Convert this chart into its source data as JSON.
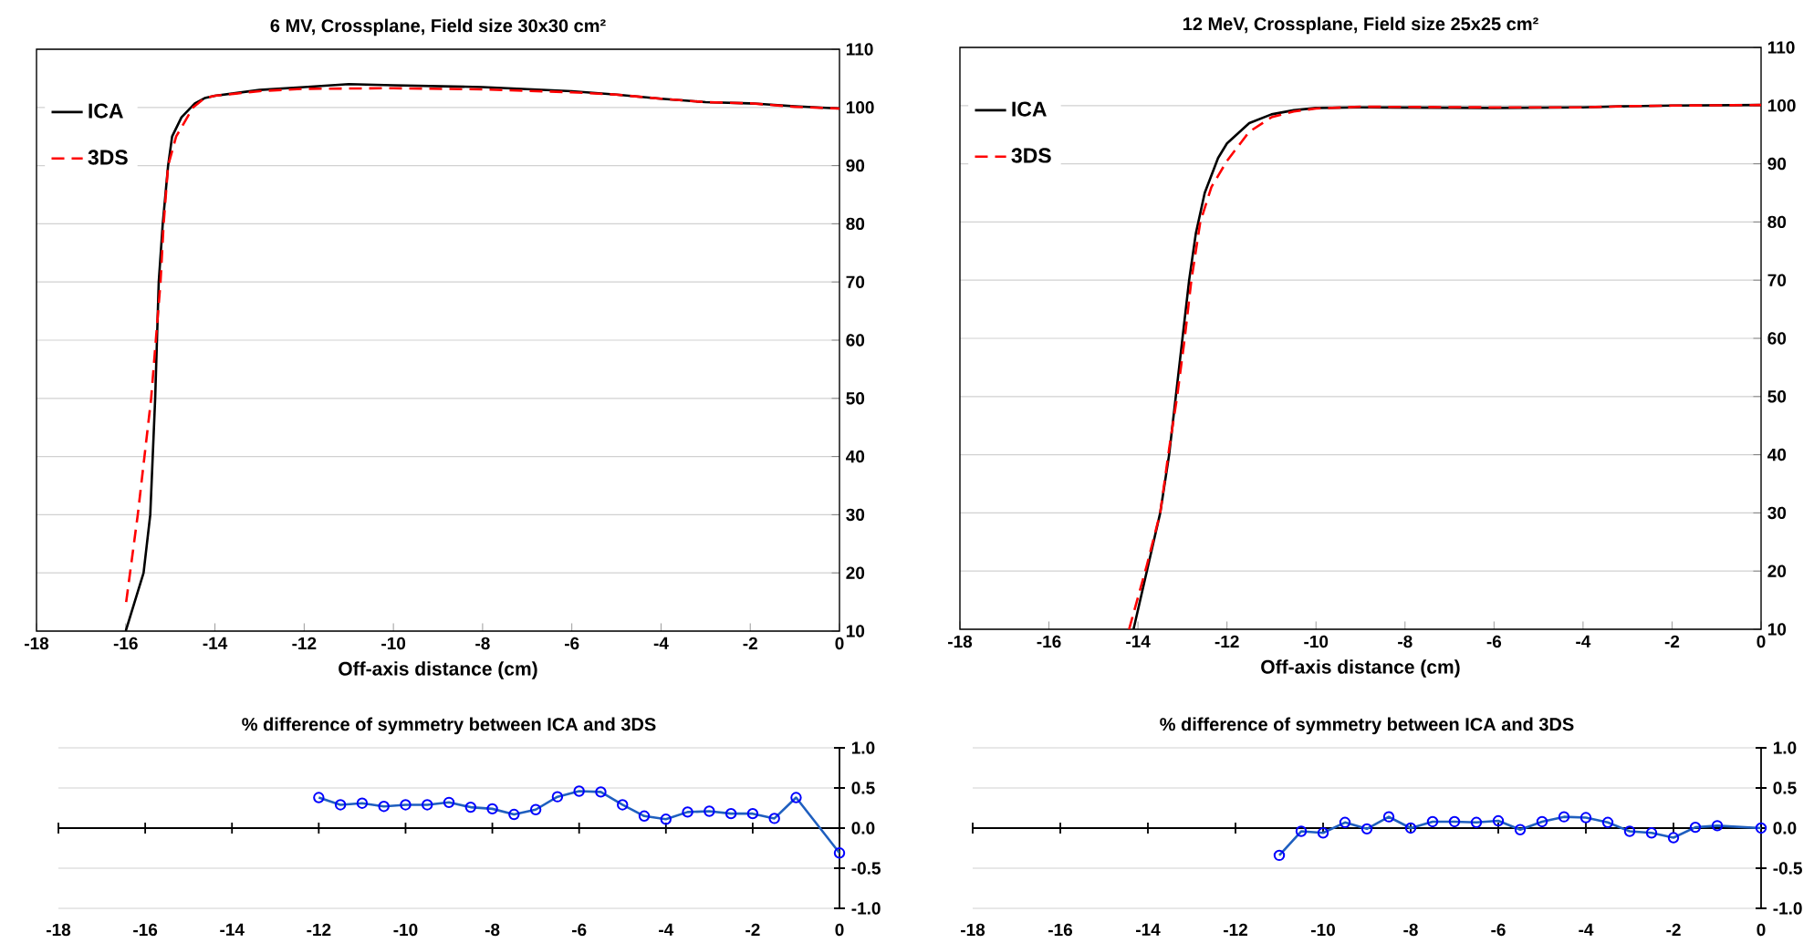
{
  "chart_data": [
    {
      "type": "line",
      "title": "6 MV, Crossplane, Field size 30x30 cm²",
      "xlabel": "Off-axis distance (cm)",
      "xlim": [
        -18,
        0
      ],
      "ylim": [
        10,
        110
      ],
      "xticks": [
        -18,
        -16,
        -14,
        -12,
        -10,
        -8,
        -6,
        -4,
        -2,
        0
      ],
      "yticks": [
        10,
        20,
        30,
        40,
        50,
        60,
        70,
        80,
        90,
        100,
        110
      ],
      "grid": "y",
      "legend": "top left",
      "series": [
        {
          "name": "ICA",
          "color": "#000000",
          "line_style": "solid",
          "x": [
            -16.0,
            -15.8,
            -15.6,
            -15.45,
            -15.34,
            -15.26,
            -15.17,
            -15.05,
            -14.96,
            -14.75,
            -14.45,
            -14.23,
            -14.0,
            -13.0,
            -12.0,
            -11.0,
            -10.0,
            -8.0,
            -6.0,
            -5.0,
            -4.0,
            -3.0,
            -2.0,
            -1.0,
            0.0
          ],
          "values": [
            10,
            15,
            20,
            30,
            50,
            70,
            80,
            90,
            95,
            98.3,
            100.7,
            101.6,
            102,
            103,
            103.5,
            104,
            103.8,
            103.5,
            102.8,
            102.2,
            101.5,
            100.9,
            100.7,
            100.2,
            99.8
          ]
        },
        {
          "name": "3DS",
          "color": "#ff0000",
          "line_style": "dashed",
          "x": [
            -15.99,
            -15.73,
            -15.43,
            -15.22,
            -15.15,
            -15.05,
            -14.87,
            -14.49,
            -14.23,
            -14.0,
            -13.0,
            -12.0,
            -10.0,
            -8.0,
            -6.0,
            -5.0,
            -4.0,
            -3.0,
            -2.0,
            -1.0,
            0.0
          ],
          "values": [
            15,
            30,
            50,
            70,
            80,
            90,
            95,
            100,
            101.6,
            102,
            102.8,
            103.2,
            103.3,
            103.1,
            102.6,
            102.2,
            101.5,
            100.9,
            100.7,
            100.1,
            99.8
          ]
        }
      ]
    },
    {
      "type": "line",
      "title": "12 MeV, Crossplane, Field size 25x25 cm²",
      "xlabel": "Off-axis distance (cm)",
      "xlim": [
        -18,
        0
      ],
      "ylim": [
        10,
        110
      ],
      "xticks": [
        -18,
        -16,
        -14,
        -12,
        -10,
        -8,
        -6,
        -4,
        -2,
        0
      ],
      "yticks": [
        10,
        20,
        30,
        40,
        50,
        60,
        70,
        80,
        90,
        100,
        110
      ],
      "grid": "y",
      "legend": "top left",
      "series": [
        {
          "name": "ICA",
          "color": "#000000",
          "line_style": "solid",
          "x": [
            -14.1,
            -13.8,
            -13.5,
            -13.3,
            -13.15,
            -13.0,
            -12.85,
            -12.7,
            -12.5,
            -12.2,
            -12.0,
            -11.5,
            -11.0,
            -10.5,
            -10.0,
            -9.0,
            -6.0,
            -4.0,
            -3.0,
            -2.0,
            0.0
          ],
          "values": [
            10,
            20,
            30,
            40,
            50,
            60,
            70,
            78,
            85,
            91,
            93.5,
            97,
            98.5,
            99.2,
            99.6,
            99.7,
            99.6,
            99.7,
            99.9,
            100,
            100.1
          ]
        },
        {
          "name": "3DS",
          "color": "#ff0000",
          "line_style": "dashed",
          "x": [
            -14.2,
            -13.8,
            -13.5,
            -13.3,
            -13.12,
            -12.95,
            -12.8,
            -12.6,
            -12.35,
            -12.0,
            -11.5,
            -11.0,
            -10.5,
            -10.0,
            -9.0,
            -6.0,
            -4.0,
            -3.0,
            -2.0,
            0.0
          ],
          "values": [
            10,
            21,
            30,
            41,
            50,
            60,
            70,
            80,
            86,
            90.5,
            95.5,
            98,
            99,
            99.5,
            99.8,
            99.7,
            99.7,
            99.9,
            100,
            100.1
          ]
        }
      ]
    },
    {
      "type": "line",
      "title": "% difference  of symmetry between ICA and 3DS",
      "xlim": [
        -18,
        0
      ],
      "ylim": [
        -1,
        1
      ],
      "xticks": [
        -18,
        -16,
        -14,
        -12,
        -10,
        -8,
        -6,
        -4,
        -2,
        0
      ],
      "yticks": [
        {
          "value": -1,
          "label": "-1.0"
        },
        {
          "value": -0.5,
          "label": "-0.5"
        },
        {
          "value": 0,
          "label": "0.0"
        },
        {
          "value": 0.5,
          "label": "0.5"
        },
        {
          "value": 1,
          "label": "1.0"
        }
      ],
      "grid": "y",
      "marker": "circle",
      "series": [
        {
          "color": "#1f5fbf",
          "x": [
            -12,
            -11.5,
            -11,
            -10.5,
            -10,
            -9.5,
            -9,
            -8.5,
            -8,
            -7.5,
            -7,
            -6.5,
            -6,
            -5.5,
            -5,
            -4.5,
            -4,
            -3.5,
            -3,
            -2.5,
            -2,
            -1.5,
            -1,
            0
          ],
          "values": [
            0.38,
            0.29,
            0.31,
            0.27,
            0.29,
            0.29,
            0.32,
            0.26,
            0.24,
            0.17,
            0.23,
            0.39,
            0.46,
            0.45,
            0.29,
            0.15,
            0.11,
            0.2,
            0.21,
            0.18,
            0.18,
            0.12,
            0.38,
            -0.31
          ]
        }
      ]
    },
    {
      "type": "line",
      "title": "% difference  of symmetry between ICA and 3DS",
      "xlim": [
        -18,
        0
      ],
      "ylim": [
        -1,
        1
      ],
      "xticks": [
        -18,
        -16,
        -14,
        -12,
        -10,
        -8,
        -6,
        -4,
        -2,
        0
      ],
      "yticks": [
        {
          "value": -1,
          "label": "-1.0"
        },
        {
          "value": -0.5,
          "label": "-0.5"
        },
        {
          "value": 0,
          "label": "0.0"
        },
        {
          "value": 0.5,
          "label": "0.5"
        },
        {
          "value": 1,
          "label": "1.0"
        }
      ],
      "grid": "y",
      "marker": "circle",
      "series": [
        {
          "color": "#1f5fbf",
          "x": [
            -11,
            -10.5,
            -10,
            -9.5,
            -9,
            -8.5,
            -8,
            -7.5,
            -7,
            -6.5,
            -6,
            -5.5,
            -5,
            -4.5,
            -4,
            -3.5,
            -3,
            -2.5,
            -2,
            -1.5,
            -1,
            0
          ],
          "values": [
            -0.34,
            -0.04,
            -0.06,
            0.07,
            -0.01,
            0.14,
            0.0,
            0.08,
            0.08,
            0.07,
            0.09,
            -0.02,
            0.08,
            0.14,
            0.13,
            0.07,
            -0.04,
            -0.06,
            -0.12,
            0.01,
            0.03,
            0.0
          ]
        }
      ]
    }
  ]
}
